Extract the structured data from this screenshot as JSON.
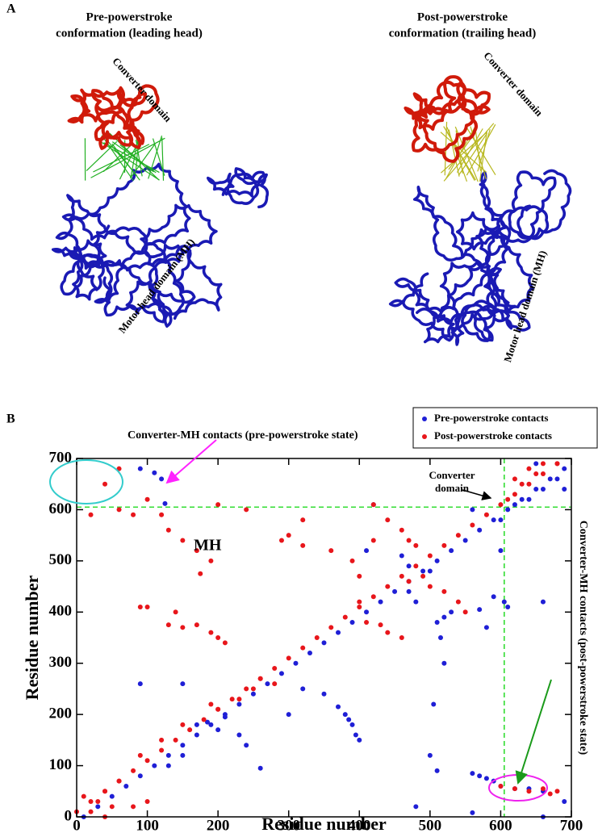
{
  "figure": {
    "panel_a": {
      "label": "A",
      "left_title": [
        "Pre-powerstroke",
        "conformation (leading head)"
      ],
      "right_title": [
        "Post-powerstroke",
        "conformation (trailing head)"
      ],
      "left_converter": "Converter domain",
      "right_converter": "Converter domain",
      "left_motor": "Motor head domain (MH)",
      "right_motor": "Motor head domain (MH)"
    },
    "panel_b": {
      "label": "B"
    }
  },
  "chart_data": {
    "type": "scatter",
    "xlabel": "Residue number",
    "ylabel": "Residue number",
    "xlim": [
      0,
      700
    ],
    "ylim": [
      0,
      700
    ],
    "xticks": [
      0,
      100,
      200,
      300,
      400,
      500,
      600,
      700
    ],
    "yticks": [
      0,
      100,
      200,
      300,
      400,
      500,
      600,
      700
    ],
    "legend": "upper right",
    "reference_lines": [
      605
    ],
    "annotations": [
      "Converter-MH contacts (pre-powerstroke state)",
      "MH",
      "Converter",
      "domain",
      "Converter-MH contacts (post-powerstroke state)"
    ],
    "series": [
      {
        "name": "Pre-powerstroke contacts",
        "color": "#1f1fd6",
        "x": [
          10,
          30,
          50,
          70,
          90,
          110,
          130,
          150,
          170,
          190,
          210,
          230,
          250,
          270,
          290,
          310,
          330,
          350,
          370,
          390,
          410,
          430,
          450,
          470,
          490,
          510,
          530,
          550,
          570,
          590,
          610,
          630,
          650,
          670,
          690,
          370,
          380,
          390,
          395,
          400,
          385,
          560,
          570,
          580,
          590,
          600,
          620,
          640,
          660,
          510,
          520,
          530,
          520,
          515,
          505,
          605,
          610,
          660,
          90,
          110,
          120,
          125,
          420,
          410,
          170,
          185,
          200,
          210,
          150,
          130,
          260,
          90,
          150,
          560,
          320,
          300,
          350,
          230,
          240,
          660,
          680,
          690,
          640,
          620,
          650,
          460,
          470,
          470,
          480,
          500,
          590,
          570,
          580,
          500,
          510,
          480,
          660,
          690,
          600,
          600,
          560
        ],
        "values": [
          0,
          20,
          40,
          60,
          80,
          100,
          120,
          140,
          160,
          180,
          200,
          220,
          240,
          260,
          280,
          300,
          320,
          340,
          360,
          380,
          400,
          420,
          440,
          460,
          480,
          500,
          520,
          540,
          560,
          580,
          600,
          620,
          640,
          660,
          680,
          215,
          200,
          180,
          160,
          150,
          190,
          85,
          80,
          75,
          70,
          60,
          55,
          55,
          50,
          380,
          390,
          400,
          300,
          350,
          220,
          420,
          410,
          420,
          680,
          672,
          660,
          612,
          610,
          520,
          180,
          185,
          170,
          195,
          120,
          100,
          95,
          260,
          260,
          8,
          250,
          200,
          240,
          160,
          140,
          640,
          660,
          640,
          620,
          610,
          690,
          510,
          490,
          440,
          420,
          480,
          430,
          405,
          370,
          120,
          90,
          20,
          0,
          30,
          520,
          580,
          600
        ]
      },
      {
        "name": "Post-powerstroke contacts",
        "color": "#e8161b",
        "x": [
          0,
          20,
          40,
          60,
          80,
          100,
          120,
          140,
          160,
          180,
          200,
          220,
          240,
          260,
          280,
          300,
          320,
          340,
          360,
          380,
          400,
          420,
          440,
          460,
          480,
          500,
          520,
          540,
          560,
          580,
          600,
          620,
          640,
          660,
          680,
          20,
          60,
          80,
          100,
          120,
          40,
          60,
          130,
          150,
          170,
          190,
          175,
          100,
          140,
          150,
          170,
          190,
          200,
          210,
          130,
          290,
          300,
          320,
          360,
          390,
          400,
          420,
          420,
          440,
          460,
          470,
          480,
          400,
          410,
          430,
          440,
          460,
          470,
          490,
          500,
          520,
          540,
          550,
          250,
          260,
          280,
          230,
          200,
          190,
          150,
          120,
          90,
          60,
          40,
          10,
          30,
          20,
          320,
          240,
          200,
          90,
          600,
          620,
          640,
          660,
          670,
          680,
          620,
          640,
          660,
          650,
          630,
          610,
          680,
          80,
          40,
          100,
          50
        ],
        "values": [
          10,
          30,
          50,
          70,
          90,
          110,
          130,
          150,
          170,
          190,
          210,
          230,
          250,
          270,
          290,
          310,
          330,
          350,
          370,
          390,
          410,
          430,
          450,
          470,
          490,
          510,
          530,
          550,
          570,
          590,
          610,
          630,
          650,
          670,
          690,
          590,
          600,
          590,
          620,
          590,
          650,
          680,
          560,
          540,
          520,
          500,
          475,
          410,
          400,
          370,
          375,
          360,
          350,
          340,
          375,
          540,
          550,
          530,
          520,
          500,
          470,
          540,
          610,
          580,
          560,
          540,
          530,
          420,
          380,
          375,
          360,
          350,
          460,
          470,
          450,
          440,
          420,
          400,
          250,
          270,
          260,
          230,
          210,
          220,
          180,
          150,
          120,
          70,
          50,
          40,
          30,
          10,
          580,
          600,
          610,
          410,
          60,
          55,
          50,
          55,
          45,
          50,
          660,
          680,
          690,
          670,
          650,
          620,
          690,
          20,
          0,
          30,
          20
        ]
      }
    ]
  }
}
